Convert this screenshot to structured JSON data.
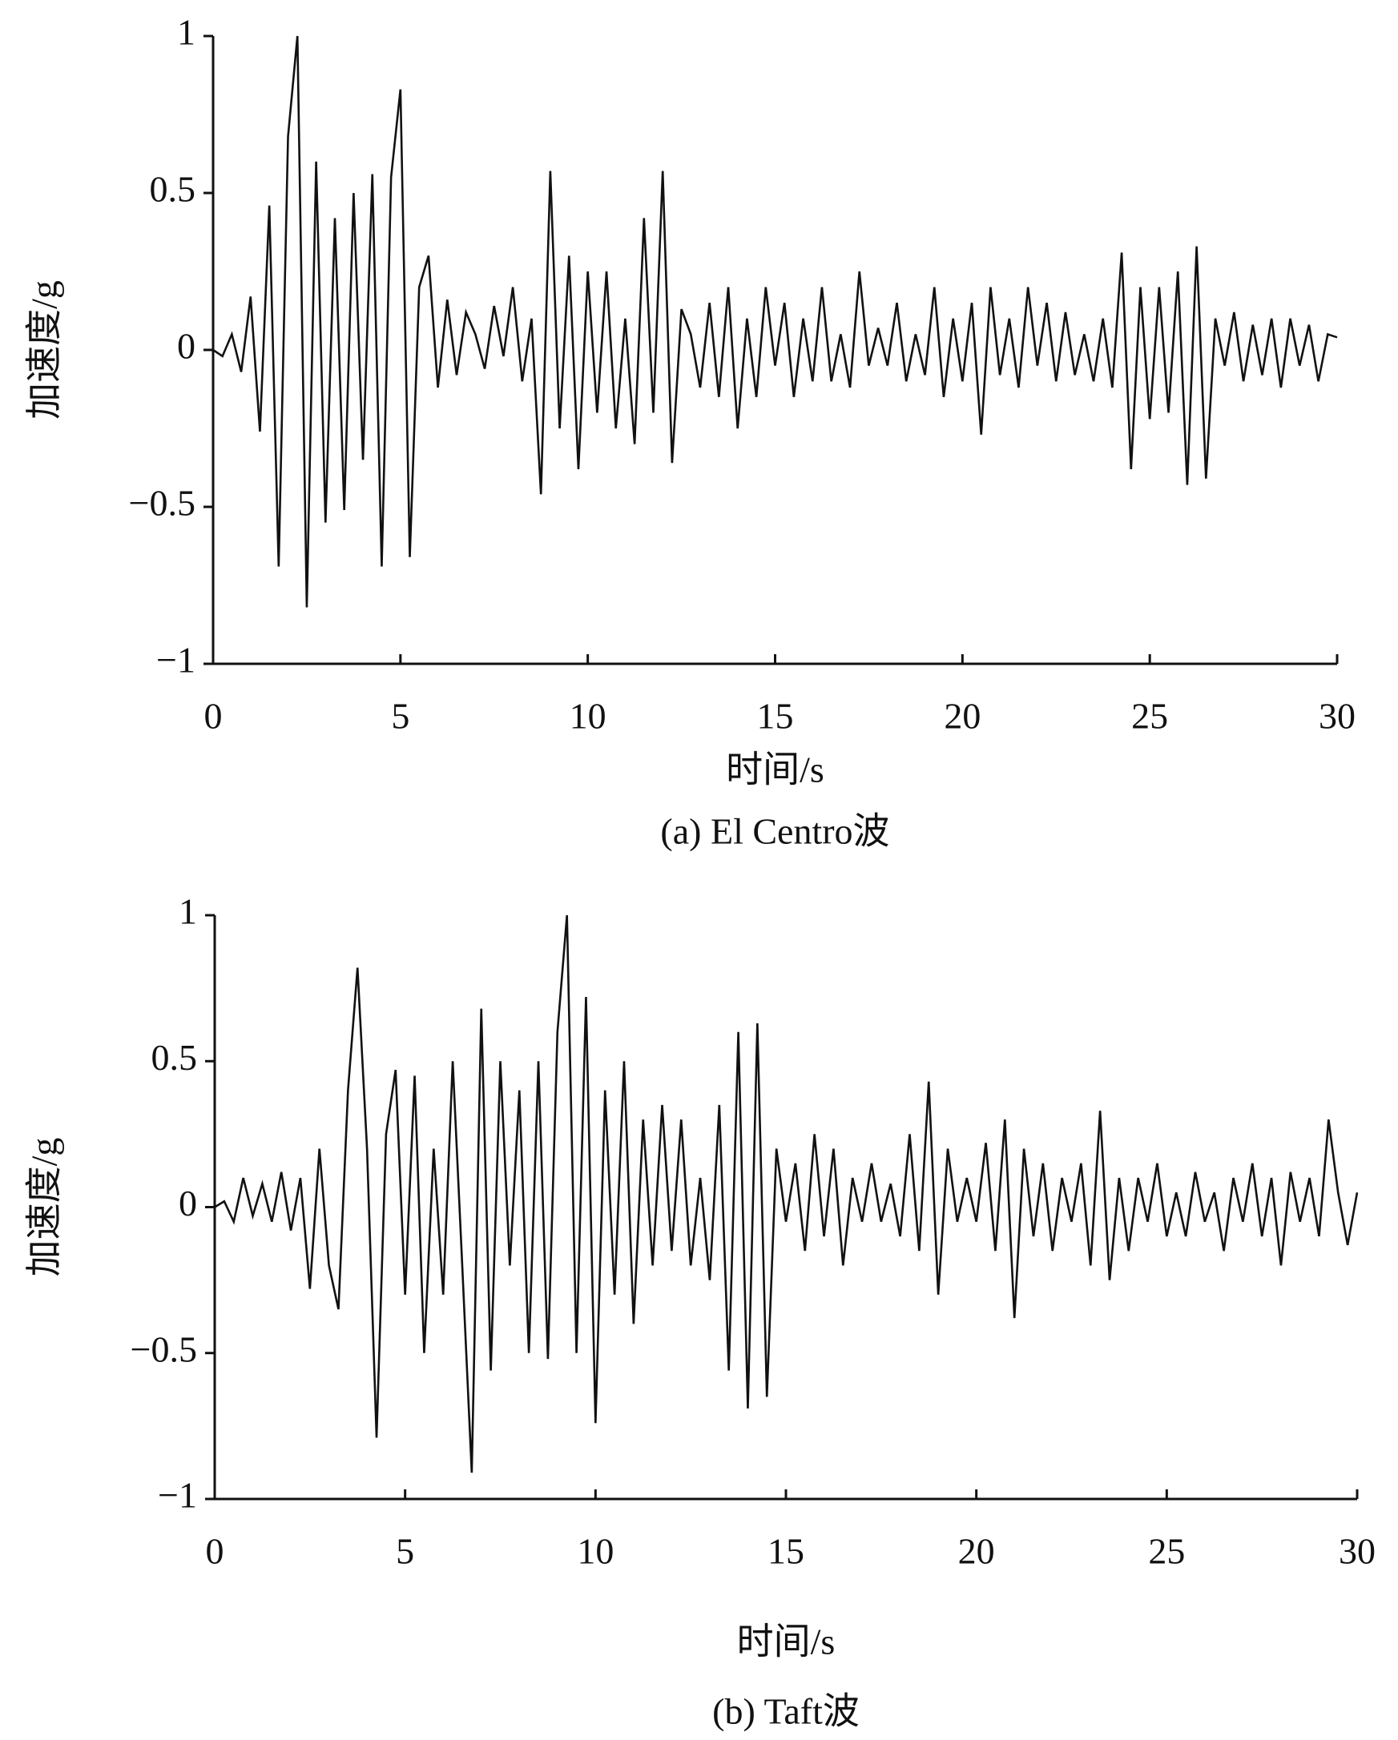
{
  "chart_data": [
    {
      "type": "line",
      "caption": "(a) El Centro波",
      "x_label": "时间/s",
      "y_label": "加速度/g",
      "color": "#111111",
      "xlim": [
        0,
        30
      ],
      "ylim": [
        -1,
        1
      ],
      "xticks": [
        0,
        5,
        10,
        15,
        20,
        25,
        30
      ],
      "yticks": [
        {
          "value": -1,
          "label": "−1"
        },
        {
          "value": -0.5,
          "label": "−0.5"
        },
        0,
        0.5,
        1
      ],
      "x": [
        0,
        0.25,
        0.5,
        0.75,
        1,
        1.25,
        1.5,
        1.75,
        2,
        2.25,
        2.5,
        2.75,
        3,
        3.25,
        3.5,
        3.75,
        4,
        4.25,
        4.5,
        4.75,
        5,
        5.25,
        5.5,
        5.75,
        6,
        6.25,
        6.5,
        6.75,
        7,
        7.25,
        7.5,
        7.75,
        8,
        8.25,
        8.5,
        8.75,
        9,
        9.25,
        9.5,
        9.75,
        10,
        10.25,
        10.5,
        10.75,
        11,
        11.25,
        11.5,
        11.75,
        12,
        12.25,
        12.5,
        12.75,
        13,
        13.25,
        13.5,
        13.75,
        14,
        14.25,
        14.5,
        14.75,
        15,
        15.25,
        15.5,
        15.75,
        16,
        16.25,
        16.5,
        16.75,
        17,
        17.25,
        17.5,
        17.75,
        18,
        18.25,
        18.5,
        18.75,
        19,
        19.25,
        19.5,
        19.75,
        20,
        20.25,
        20.5,
        20.75,
        21,
        21.25,
        21.5,
        21.75,
        22,
        22.25,
        22.5,
        22.75,
        23,
        23.25,
        23.5,
        23.75,
        24,
        24.25,
        24.5,
        24.75,
        25,
        25.25,
        25.5,
        25.75,
        26,
        26.25,
        26.5,
        26.75,
        27,
        27.25,
        27.5,
        27.75,
        28,
        28.25,
        28.5,
        28.75,
        29,
        29.25,
        29.5,
        29.75,
        30
      ],
      "values": [
        0,
        -0.02,
        0.05,
        -0.07,
        0.17,
        -0.26,
        0.46,
        -0.69,
        0.68,
        1.0,
        -0.82,
        0.6,
        -0.55,
        0.42,
        -0.51,
        0.5,
        -0.35,
        0.56,
        -0.69,
        0.55,
        0.83,
        -0.66,
        0.2,
        0.3,
        -0.12,
        0.16,
        -0.08,
        0.12,
        0.05,
        -0.06,
        0.14,
        -0.02,
        0.2,
        -0.1,
        0.1,
        -0.46,
        0.57,
        -0.25,
        0.3,
        -0.38,
        0.25,
        -0.2,
        0.25,
        -0.25,
        0.1,
        -0.3,
        0.42,
        -0.2,
        0.57,
        -0.36,
        0.13,
        0.05,
        -0.12,
        0.15,
        -0.15,
        0.2,
        -0.25,
        0.1,
        -0.15,
        0.2,
        -0.05,
        0.15,
        -0.15,
        0.1,
        -0.1,
        0.2,
        -0.1,
        0.05,
        -0.12,
        0.25,
        -0.05,
        0.07,
        -0.05,
        0.15,
        -0.1,
        0.05,
        -0.08,
        0.2,
        -0.15,
        0.1,
        -0.1,
        0.15,
        -0.27,
        0.2,
        -0.08,
        0.1,
        -0.12,
        0.2,
        -0.05,
        0.15,
        -0.1,
        0.12,
        -0.08,
        0.05,
        -0.1,
        0.1,
        -0.12,
        0.31,
        -0.38,
        0.2,
        -0.22,
        0.2,
        -0.2,
        0.25,
        -0.43,
        0.33,
        -0.41,
        0.1,
        -0.05,
        0.12,
        -0.1,
        0.08,
        -0.08,
        0.1,
        -0.12,
        0.1,
        -0.05,
        0.08,
        -0.1,
        0.05,
        0.04
      ]
    },
    {
      "type": "line",
      "caption": "(b) Taft波",
      "x_label": "时间/s",
      "y_label": "加速度/g",
      "color": "#111111",
      "xlim": [
        0,
        30
      ],
      "ylim": [
        -1,
        1
      ],
      "xticks": [
        0,
        5,
        10,
        15,
        20,
        25,
        30
      ],
      "yticks": [
        {
          "value": -1,
          "label": "−1"
        },
        {
          "value": -0.5,
          "label": "−0.5"
        },
        0,
        0.5,
        1
      ],
      "x": [
        0,
        0.25,
        0.5,
        0.75,
        1,
        1.25,
        1.5,
        1.75,
        2,
        2.25,
        2.5,
        2.75,
        3,
        3.25,
        3.5,
        3.75,
        4,
        4.25,
        4.5,
        4.75,
        5,
        5.25,
        5.5,
        5.75,
        6,
        6.25,
        6.5,
        6.75,
        7,
        7.25,
        7.5,
        7.75,
        8,
        8.25,
        8.5,
        8.75,
        9,
        9.25,
        9.5,
        9.75,
        10,
        10.25,
        10.5,
        10.75,
        11,
        11.25,
        11.5,
        11.75,
        12,
        12.25,
        12.5,
        12.75,
        13,
        13.25,
        13.5,
        13.75,
        14,
        14.25,
        14.5,
        14.75,
        15,
        15.25,
        15.5,
        15.75,
        16,
        16.25,
        16.5,
        16.75,
        17,
        17.25,
        17.5,
        17.75,
        18,
        18.25,
        18.5,
        18.75,
        19,
        19.25,
        19.5,
        19.75,
        20,
        20.25,
        20.5,
        20.75,
        21,
        21.25,
        21.5,
        21.75,
        22,
        22.25,
        22.5,
        22.75,
        23,
        23.25,
        23.5,
        23.75,
        24,
        24.25,
        24.5,
        24.75,
        25,
        25.25,
        25.5,
        25.75,
        26,
        26.25,
        26.5,
        26.75,
        27,
        27.25,
        27.5,
        27.75,
        28,
        28.25,
        28.5,
        28.75,
        29,
        29.25,
        29.5,
        29.75,
        30
      ],
      "values": [
        0,
        0.02,
        -0.05,
        0.1,
        -0.03,
        0.08,
        -0.05,
        0.12,
        -0.08,
        0.1,
        -0.28,
        0.2,
        -0.2,
        -0.35,
        0.4,
        0.82,
        0.2,
        -0.79,
        0.25,
        0.47,
        -0.3,
        0.45,
        -0.5,
        0.2,
        -0.3,
        0.5,
        -0.2,
        -0.91,
        0.68,
        -0.56,
        0.5,
        -0.2,
        0.4,
        -0.5,
        0.5,
        -0.52,
        0.6,
        1.0,
        -0.5,
        0.72,
        -0.74,
        0.4,
        -0.3,
        0.5,
        -0.4,
        0.3,
        -0.2,
        0.35,
        -0.15,
        0.3,
        -0.2,
        0.1,
        -0.25,
        0.35,
        -0.56,
        0.6,
        -0.69,
        0.63,
        -0.65,
        0.2,
        -0.05,
        0.15,
        -0.15,
        0.25,
        -0.1,
        0.2,
        -0.2,
        0.1,
        -0.05,
        0.15,
        -0.05,
        0.08,
        -0.1,
        0.25,
        -0.15,
        0.43,
        -0.3,
        0.2,
        -0.05,
        0.1,
        -0.05,
        0.22,
        -0.15,
        0.3,
        -0.38,
        0.2,
        -0.1,
        0.15,
        -0.15,
        0.1,
        -0.05,
        0.15,
        -0.2,
        0.33,
        -0.25,
        0.1,
        -0.15,
        0.1,
        -0.05,
        0.15,
        -0.1,
        0.05,
        -0.1,
        0.12,
        -0.05,
        0.05,
        -0.15,
        0.1,
        -0.05,
        0.15,
        -0.1,
        0.1,
        -0.2,
        0.12,
        -0.05,
        0.1,
        -0.1,
        0.3,
        0.05,
        -0.13,
        0.05
      ]
    }
  ]
}
